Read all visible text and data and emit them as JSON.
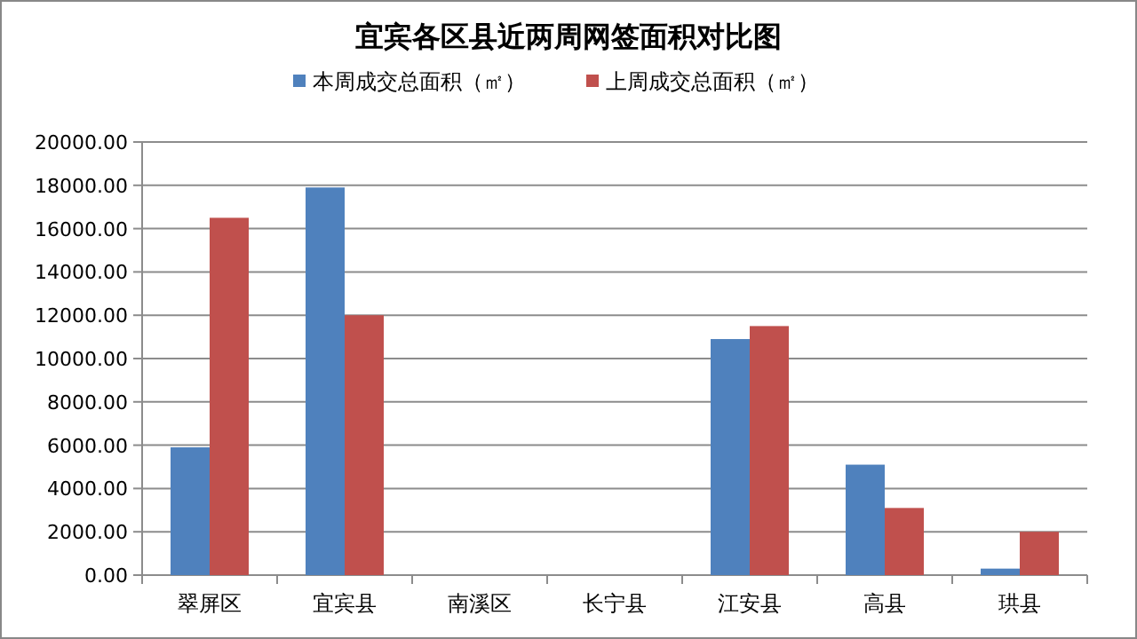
{
  "chart_data": {
    "type": "bar",
    "title": "宜宾各区县近两周网签面积对比图",
    "categories": [
      "翠屏区",
      "宜宾县",
      "南溪区",
      "长宁县",
      "江安县",
      "高县",
      "珙县"
    ],
    "series": [
      {
        "name": "本周成交总面积（㎡）",
        "color": "#4f81bd",
        "values": [
          5900,
          17900,
          0,
          0,
          10900,
          5100,
          300
        ]
      },
      {
        "name": "上周成交总面积（㎡）",
        "color": "#c0504d",
        "values": [
          16500,
          12000,
          0,
          0,
          11500,
          3100,
          2000
        ]
      }
    ],
    "ylim": [
      0,
      20000
    ],
    "yticks": [
      {
        "value": 0,
        "label": "0.00"
      },
      {
        "value": 2000,
        "label": "2000.00"
      },
      {
        "value": 4000,
        "label": "4000.00"
      },
      {
        "value": 6000,
        "label": "6000.00"
      },
      {
        "value": 8000,
        "label": "8000.00"
      },
      {
        "value": 10000,
        "label": "10000.00"
      },
      {
        "value": 12000,
        "label": "12000.00"
      },
      {
        "value": 14000,
        "label": "14000.00"
      },
      {
        "value": 16000,
        "label": "16000.00"
      },
      {
        "value": 18000,
        "label": "18000.00"
      },
      {
        "value": 20000,
        "label": "20000.00"
      }
    ],
    "grid": "y",
    "legend": "top"
  }
}
